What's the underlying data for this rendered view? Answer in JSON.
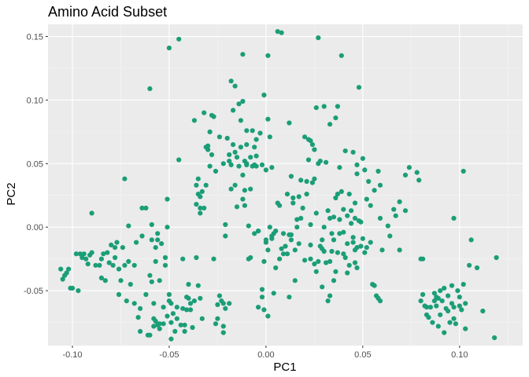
{
  "chart_data": {
    "type": "scatter",
    "title": "Amino Acid Subset",
    "xlabel": "PC1",
    "ylabel": "PC2",
    "xlim": [
      -0.1126,
      0.1326
    ],
    "ylim": [
      -0.0932,
      0.1596
    ],
    "x_ticks": [
      -0.1,
      -0.05,
      0.0,
      0.05,
      0.1
    ],
    "x_tick_labels": [
      "-0.10",
      "-0.05",
      "0.00",
      "0.05",
      "0.10"
    ],
    "y_ticks": [
      -0.05,
      0.0,
      0.05,
      0.1,
      0.15
    ],
    "y_tick_labels": [
      "-0.05",
      "0.00",
      "0.05",
      "0.10",
      "0.15"
    ],
    "grid": true,
    "background": "#EBEBEB",
    "point_color": "#1B9E77",
    "points": [
      [
        -0.106,
        -0.033
      ],
      [
        -0.105,
        -0.041
      ],
      [
        -0.104,
        -0.038
      ],
      [
        -0.103,
        -0.036
      ],
      [
        -0.102,
        -0.033
      ],
      [
        -0.101,
        -0.048
      ],
      [
        -0.1,
        -0.048
      ],
      [
        -0.098,
        -0.021
      ],
      [
        -0.097,
        -0.05
      ],
      [
        -0.096,
        -0.021
      ],
      [
        -0.095,
        -0.024
      ],
      [
        -0.094,
        -0.021
      ],
      [
        -0.093,
        -0.025
      ],
      [
        -0.092,
        -0.029
      ],
      [
        -0.091,
        -0.022
      ],
      [
        -0.09,
        -0.02
      ],
      [
        -0.09,
        0.011
      ],
      [
        -0.088,
        -0.03
      ],
      [
        -0.086,
        -0.03
      ],
      [
        -0.085,
        -0.04
      ],
      [
        -0.085,
        -0.025
      ],
      [
        -0.084,
        -0.021
      ],
      [
        -0.083,
        -0.042
      ],
      [
        -0.082,
        -0.02
      ],
      [
        -0.081,
        -0.028
      ],
      [
        -0.08,
        -0.014
      ],
      [
        -0.079,
        -0.03
      ],
      [
        -0.078,
        -0.016
      ],
      [
        -0.078,
        -0.024
      ],
      [
        -0.077,
        -0.012
      ],
      [
        -0.076,
        -0.033
      ],
      [
        -0.076,
        -0.053
      ],
      [
        -0.075,
        -0.042
      ],
      [
        -0.074,
        -0.016
      ],
      [
        -0.073,
        -0.03
      ],
      [
        -0.073,
        0.038
      ],
      [
        -0.072,
        -0.058
      ],
      [
        -0.071,
        -0.027
      ],
      [
        -0.071,
        0.001
      ],
      [
        -0.07,
        -0.045
      ],
      [
        -0.068,
        -0.03
      ],
      [
        -0.068,
        -0.06
      ],
      [
        -0.067,
        -0.012
      ],
      [
        -0.066,
        -0.071
      ],
      [
        -0.065,
        -0.064
      ],
      [
        -0.065,
        -0.082
      ],
      [
        -0.064,
        0.015
      ],
      [
        -0.064,
        -0.007
      ],
      [
        -0.062,
        0.015
      ],
      [
        -0.062,
        -0.053
      ],
      [
        -0.061,
        -0.085
      ],
      [
        -0.06,
        0.109
      ],
      [
        -0.06,
        -0.085
      ],
      [
        -0.06,
        -0.038
      ],
      [
        -0.059,
        -0.043
      ],
      [
        -0.059,
        -0.01
      ],
      [
        -0.059,
        0.002
      ],
      [
        -0.058,
        -0.078
      ],
      [
        -0.058,
        -0.06
      ],
      [
        -0.058,
        -0.072
      ],
      [
        -0.057,
        -0.016
      ],
      [
        -0.057,
        -0.027
      ],
      [
        -0.057,
        -0.074
      ],
      [
        -0.056,
        -0.005
      ],
      [
        -0.056,
        -0.01
      ],
      [
        -0.056,
        -0.077
      ],
      [
        -0.055,
        -0.042
      ],
      [
        -0.055,
        -0.076
      ],
      [
        -0.055,
        -0.08
      ],
      [
        -0.054,
        -0.013
      ],
      [
        -0.053,
        -0.063
      ],
      [
        -0.053,
        -0.076
      ],
      [
        -0.052,
        -0.024
      ],
      [
        -0.052,
        -0.03
      ],
      [
        -0.051,
        0.0
      ],
      [
        -0.051,
        0.022
      ],
      [
        -0.051,
        -0.07
      ],
      [
        -0.05,
        0.141
      ],
      [
        -0.05,
        -0.053
      ],
      [
        -0.05,
        -0.058
      ],
      [
        -0.049,
        -0.06
      ],
      [
        -0.049,
        -0.075
      ],
      [
        -0.049,
        -0.088
      ],
      [
        -0.048,
        -0.068
      ],
      [
        -0.047,
        -0.082
      ],
      [
        -0.046,
        -0.063
      ],
      [
        -0.046,
        -0.072
      ],
      [
        -0.045,
        0.053
      ],
      [
        -0.045,
        0.148
      ],
      [
        -0.044,
        -0.077
      ],
      [
        -0.043,
        -0.025
      ],
      [
        -0.043,
        -0.064
      ],
      [
        -0.042,
        -0.082
      ],
      [
        -0.042,
        -0.077
      ],
      [
        -0.041,
        -0.055
      ],
      [
        -0.041,
        -0.065
      ],
      [
        -0.04,
        -0.045
      ],
      [
        -0.04,
        -0.056
      ],
      [
        -0.039,
        -0.06
      ],
      [
        -0.039,
        -0.065
      ],
      [
        -0.038,
        -0.079
      ],
      [
        -0.037,
        -0.058
      ],
      [
        -0.037,
        0.084
      ],
      [
        -0.036,
        0.018
      ],
      [
        -0.036,
        -0.024
      ],
      [
        -0.036,
        0.033
      ],
      [
        -0.035,
        0.038
      ],
      [
        -0.035,
        0.026
      ],
      [
        -0.035,
        -0.046
      ],
      [
        -0.034,
        -0.056
      ],
      [
        -0.034,
        0.024
      ],
      [
        -0.034,
        0.011
      ],
      [
        -0.034,
        0.015
      ],
      [
        -0.033,
        0.028
      ],
      [
        -0.033,
        -0.072
      ],
      [
        -0.032,
        0.015
      ],
      [
        -0.032,
        0.09
      ],
      [
        -0.031,
        0.063
      ],
      [
        -0.031,
        0.033
      ],
      [
        -0.03,
        0.064
      ],
      [
        -0.03,
        0.061
      ],
      [
        -0.029,
        0.048
      ],
      [
        -0.029,
        0.075
      ],
      [
        -0.028,
        0.057
      ],
      [
        -0.028,
        0.088
      ],
      [
        -0.027,
        -0.025
      ],
      [
        -0.027,
        0.087
      ],
      [
        -0.026,
        -0.076
      ],
      [
        -0.026,
        0.044
      ],
      [
        -0.025,
        -0.061
      ],
      [
        -0.025,
        -0.072
      ],
      [
        -0.024,
        0.071
      ],
      [
        -0.024,
        -0.054
      ],
      [
        -0.023,
        -0.058
      ],
      [
        -0.022,
        -0.06
      ],
      [
        -0.022,
        0.05
      ],
      [
        -0.022,
        -0.083
      ],
      [
        -0.022,
        -0.078
      ],
      [
        -0.021,
        -0.007
      ],
      [
        -0.021,
        -0.064
      ],
      [
        -0.021,
        0.002
      ],
      [
        -0.02,
        0.07
      ],
      [
        -0.019,
        0.057
      ],
      [
        -0.019,
        -0.06
      ],
      [
        -0.019,
        0.052
      ],
      [
        -0.018,
        0.049
      ],
      [
        -0.018,
        0.03
      ],
      [
        -0.018,
        0.115
      ],
      [
        -0.017,
        0.065
      ],
      [
        -0.017,
        0.092
      ],
      [
        -0.016,
        0.033
      ],
      [
        -0.016,
        0.111
      ],
      [
        -0.016,
        0.059
      ],
      [
        -0.015,
        0.055
      ],
      [
        -0.015,
        0.016
      ],
      [
        -0.014,
        0.097
      ],
      [
        -0.014,
        0.048
      ],
      [
        -0.013,
        0.084
      ],
      [
        -0.013,
        0.063
      ],
      [
        -0.012,
        0.136
      ],
      [
        -0.012,
        0.041
      ],
      [
        -0.012,
        0.022
      ],
      [
        -0.012,
        0.099
      ],
      [
        -0.011,
        0.029
      ],
      [
        -0.011,
        0.017
      ],
      [
        -0.011,
        0.052
      ],
      [
        -0.01,
        0.05
      ],
      [
        -0.01,
        0.076
      ],
      [
        -0.01,
        0.049
      ],
      [
        -0.01,
        0.065
      ],
      [
        -0.009,
        0.001
      ],
      [
        -0.009,
        -0.025
      ],
      [
        -0.008,
        -0.024
      ],
      [
        -0.008,
        0.055
      ],
      [
        -0.008,
        0.03
      ],
      [
        -0.007,
        0.076
      ],
      [
        -0.007,
        0.048
      ],
      [
        -0.006,
        0.063
      ],
      [
        -0.006,
        0.049
      ],
      [
        -0.006,
        -0.005
      ],
      [
        -0.005,
        0.048
      ],
      [
        -0.005,
        0.056
      ],
      [
        -0.005,
        0.069
      ],
      [
        -0.004,
        -0.003
      ],
      [
        -0.004,
        -0.063
      ],
      [
        -0.004,
        -0.003
      ],
      [
        -0.003,
        0.074
      ],
      [
        -0.002,
        0.049
      ],
      [
        -0.002,
        -0.055
      ],
      [
        -0.002,
        -0.049
      ],
      [
        -0.001,
        0.104
      ],
      [
        -0.001,
        -0.027
      ],
      [
        -0.001,
        -0.065
      ],
      [
        0.0,
        0.045
      ],
      [
        0.0,
        -0.01
      ],
      [
        0.0,
        -0.012
      ],
      [
        0.001,
        0.085
      ],
      [
        0.001,
        -0.018
      ],
      [
        0.001,
        0.135
      ],
      [
        0.001,
        -0.07
      ],
      [
        0.002,
        0.071
      ],
      [
        0.002,
        0.0
      ],
      [
        0.003,
        0.047
      ],
      [
        0.003,
        -0.009
      ],
      [
        0.003,
        -0.007
      ],
      [
        0.004,
        -0.005
      ],
      [
        0.004,
        -0.052
      ],
      [
        0.005,
        -0.003
      ],
      [
        0.005,
        -0.032
      ],
      [
        0.006,
        0.154
      ],
      [
        0.006,
        0.019
      ],
      [
        0.007,
        -0.025
      ],
      [
        0.007,
        0.017
      ],
      [
        0.008,
        0.153
      ],
      [
        0.008,
        -0.017
      ],
      [
        0.009,
        -0.021
      ],
      [
        0.009,
        -0.005
      ],
      [
        0.01,
        -0.015
      ],
      [
        0.011,
        -0.021
      ],
      [
        0.011,
        0.026
      ],
      [
        0.012,
        0.082
      ],
      [
        0.012,
        -0.055
      ],
      [
        0.012,
        -0.006
      ],
      [
        0.013,
        -0.006
      ],
      [
        0.013,
        0.04
      ],
      [
        0.013,
        -0.01
      ],
      [
        0.014,
        0.023
      ],
      [
        0.014,
        0.019
      ],
      [
        0.015,
        -0.042
      ],
      [
        0.015,
        -0.018
      ],
      [
        0.016,
        0.006
      ],
      [
        0.016,
        0.0
      ],
      [
        0.017,
        -0.013
      ],
      [
        0.017,
        0.024
      ],
      [
        0.018,
        0.037
      ],
      [
        0.018,
        0.007
      ],
      [
        0.019,
        0.015
      ],
      [
        0.02,
        -0.026
      ],
      [
        0.02,
        0.071
      ],
      [
        0.021,
        0.036
      ],
      [
        0.021,
        0.026
      ],
      [
        0.022,
        0.053
      ],
      [
        0.022,
        0.069
      ],
      [
        0.023,
        -0.014
      ],
      [
        0.023,
        -0.025
      ],
      [
        0.023,
        0.002
      ],
      [
        0.023,
        0.068
      ],
      [
        0.024,
        0.065
      ],
      [
        0.024,
        0.035
      ],
      [
        0.025,
        0.038
      ],
      [
        0.025,
        0.061
      ],
      [
        0.025,
        -0.029
      ],
      [
        0.026,
        -0.035
      ],
      [
        0.026,
        0.011
      ],
      [
        0.026,
        0.094
      ],
      [
        0.027,
        0.149
      ],
      [
        0.027,
        -0.027
      ],
      [
        0.027,
        0.05
      ],
      [
        0.028,
        0.052
      ],
      [
        0.028,
        -0.015
      ],
      [
        0.029,
        -0.047
      ],
      [
        0.029,
        -0.01
      ],
      [
        0.029,
        -0.017
      ],
      [
        0.03,
        0.0
      ],
      [
        0.03,
        -0.019
      ],
      [
        0.03,
        0.095
      ],
      [
        0.031,
        0.051
      ],
      [
        0.031,
        -0.028
      ],
      [
        0.032,
        -0.058
      ],
      [
        0.032,
        0.013
      ],
      [
        0.033,
        0.007
      ],
      [
        0.033,
        -0.054
      ],
      [
        0.033,
        -0.027
      ],
      [
        0.033,
        0.081
      ],
      [
        0.034,
        -0.005
      ],
      [
        0.034,
        -0.019
      ],
      [
        0.035,
        0.008
      ],
      [
        0.035,
        -0.042
      ],
      [
        0.035,
        -0.01
      ],
      [
        0.036,
        0.023
      ],
      [
        0.036,
        0.086
      ],
      [
        0.036,
        -0.035
      ],
      [
        0.037,
        -0.02
      ],
      [
        0.037,
        0.095
      ],
      [
        0.037,
        0.026
      ],
      [
        0.038,
        0.006
      ],
      [
        0.038,
        0.047
      ],
      [
        0.038,
        -0.005
      ],
      [
        0.039,
        0.028
      ],
      [
        0.039,
        0.135
      ],
      [
        0.04,
        0.014
      ],
      [
        0.04,
        -0.021
      ],
      [
        0.04,
        -0.004
      ],
      [
        0.041,
        0.06
      ],
      [
        0.041,
        -0.024
      ],
      [
        0.042,
        0.009
      ],
      [
        0.042,
        -0.013
      ],
      [
        0.042,
        -0.036
      ],
      [
        0.043,
        0.026
      ],
      [
        0.043,
        -0.03
      ],
      [
        0.044,
        0.013
      ],
      [
        0.044,
        0.003
      ],
      [
        0.045,
        0.059
      ],
      [
        0.045,
        -0.012
      ],
      [
        0.045,
        -0.008
      ],
      [
        0.046,
        0.019
      ],
      [
        0.046,
        -0.018
      ],
      [
        0.046,
        0.007
      ],
      [
        0.046,
        -0.028
      ],
      [
        0.047,
        0.049
      ],
      [
        0.047,
        0.042
      ],
      [
        0.047,
        -0.032
      ],
      [
        0.047,
        -0.016
      ],
      [
        0.048,
        0.005
      ],
      [
        0.048,
        0.11
      ],
      [
        0.049,
        -0.015
      ],
      [
        0.049,
        0.004
      ],
      [
        0.05,
        0.054
      ],
      [
        0.05,
        -0.009
      ],
      [
        0.051,
        -0.02
      ],
      [
        0.051,
        0.045
      ],
      [
        0.052,
        0.022
      ],
      [
        0.052,
        -0.016
      ],
      [
        0.053,
        0.036
      ],
      [
        0.054,
        -0.012
      ],
      [
        0.054,
        0.017
      ],
      [
        0.055,
        -0.045
      ],
      [
        0.056,
        -0.046
      ],
      [
        0.056,
        0.029
      ],
      [
        0.057,
        -0.054
      ],
      [
        0.058,
        0.044
      ],
      [
        0.058,
        -0.056
      ],
      [
        0.059,
        0.033
      ],
      [
        0.059,
        0.007
      ],
      [
        0.059,
        -0.058
      ],
      [
        0.06,
        -0.018
      ],
      [
        0.063,
        0.001
      ],
      [
        0.064,
        -0.007
      ],
      [
        0.066,
        0.014
      ],
      [
        0.067,
        0.009
      ],
      [
        0.069,
        0.02
      ],
      [
        0.069,
        -0.018
      ],
      [
        0.072,
        0.013
      ],
      [
        0.072,
        0.041
      ],
      [
        0.074,
        0.047
      ],
      [
        0.078,
        0.043
      ],
      [
        0.079,
        0.037
      ],
      [
        0.08,
        -0.025
      ],
      [
        0.08,
        -0.058
      ],
      [
        0.081,
        -0.053
      ],
      [
        0.081,
        -0.025
      ],
      [
        0.082,
        -0.062
      ],
      [
        0.083,
        -0.063
      ],
      [
        0.083,
        -0.069
      ],
      [
        0.084,
        -0.071
      ],
      [
        0.085,
        -0.063
      ],
      [
        0.086,
        -0.075
      ],
      [
        0.087,
        -0.058
      ],
      [
        0.087,
        -0.052
      ],
      [
        0.088,
        -0.055
      ],
      [
        0.088,
        -0.062
      ],
      [
        0.089,
        -0.078
      ],
      [
        0.089,
        -0.056
      ],
      [
        0.09,
        -0.05
      ],
      [
        0.09,
        -0.069
      ],
      [
        0.091,
        -0.058
      ],
      [
        0.092,
        -0.048
      ],
      [
        0.092,
        -0.083
      ],
      [
        0.093,
        -0.064
      ],
      [
        0.094,
        -0.066
      ],
      [
        0.094,
        -0.054
      ],
      [
        0.095,
        -0.075
      ],
      [
        0.096,
        -0.046
      ],
      [
        0.096,
        -0.06
      ],
      [
        0.097,
        -0.072
      ],
      [
        0.097,
        0.007
      ],
      [
        0.097,
        -0.063
      ],
      [
        0.098,
        -0.076
      ],
      [
        0.099,
        -0.05
      ],
      [
        0.1,
        -0.055
      ],
      [
        0.1,
        -0.062
      ],
      [
        0.101,
        -0.065
      ],
      [
        0.102,
        0.044
      ],
      [
        0.102,
        -0.045
      ],
      [
        0.103,
        -0.06
      ],
      [
        0.103,
        -0.08
      ],
      [
        0.105,
        -0.03
      ],
      [
        0.106,
        -0.01
      ],
      [
        0.109,
        -0.032
      ],
      [
        0.112,
        -0.066
      ],
      [
        0.118,
        -0.087
      ],
      [
        0.119,
        -0.024
      ]
    ]
  }
}
